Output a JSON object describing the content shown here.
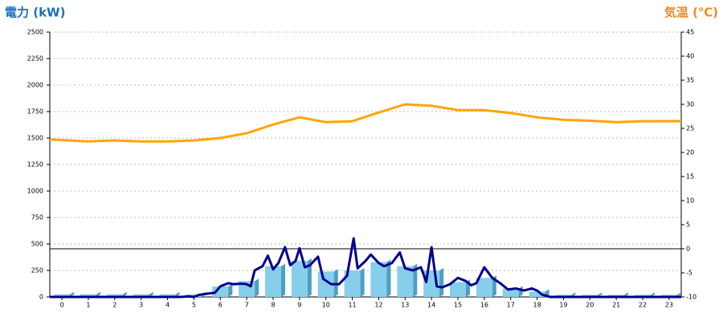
{
  "chart_data": {
    "type": "combo",
    "y_title": "電力 (kW)",
    "y2_title": "気温 (℃)",
    "xlim": [
      -0.46,
      23.46
    ],
    "xticks": [
      0,
      1,
      2,
      3,
      4,
      5,
      6,
      7,
      8,
      9,
      10,
      11,
      12,
      13,
      14,
      15,
      16,
      17,
      18,
      19,
      20,
      21,
      22,
      23
    ],
    "ylim": [
      0,
      2500
    ],
    "yticks": [
      0,
      250,
      500,
      750,
      1000,
      1250,
      1500,
      1750,
      2000,
      2250,
      2500
    ],
    "y2lim": [
      -10,
      45
    ],
    "y2ticks": [
      -10,
      -5,
      0,
      5,
      10,
      15,
      20,
      25,
      30,
      35,
      40,
      45
    ],
    "grid": true,
    "y2_reference": 0,
    "series": [
      {
        "type": "bar",
        "color": "#87ceeb",
        "side_color": "#4a9fc4",
        "x": [
          0,
          1,
          2,
          3,
          4,
          5,
          6,
          7,
          8,
          9,
          10,
          11,
          12,
          13,
          14,
          15,
          16,
          17,
          18,
          19,
          20,
          21,
          22,
          23
        ],
        "values": [
          25,
          25,
          25,
          25,
          25,
          25,
          100,
          150,
          290,
          340,
          240,
          250,
          330,
          290,
          250,
          140,
          180,
          80,
          50,
          20,
          20,
          20,
          20,
          20
        ]
      },
      {
        "type": "line",
        "color": "#00008b",
        "width": 3,
        "x": [
          -0.46,
          4.5,
          4.8,
          5.0,
          5.2,
          5.5,
          5.8,
          6.0,
          6.3,
          6.5,
          6.8,
          7.0,
          7.15,
          7.3,
          7.6,
          7.8,
          8.0,
          8.2,
          8.45,
          8.65,
          8.85,
          9.0,
          9.2,
          9.4,
          9.7,
          9.9,
          10.2,
          10.5,
          10.8,
          11.05,
          11.2,
          11.5,
          11.7,
          12.0,
          12.2,
          12.5,
          12.8,
          13.0,
          13.3,
          13.6,
          13.8,
          14.0,
          14.2,
          14.4,
          14.7,
          15.0,
          15.3,
          15.5,
          15.7,
          16.0,
          16.3,
          16.6,
          16.9,
          17.2,
          17.5,
          17.8,
          18.0,
          18.2,
          18.5,
          23.46
        ],
        "values": [
          0,
          0,
          5,
          0,
          20,
          30,
          40,
          100,
          130,
          120,
          125,
          120,
          100,
          250,
          290,
          390,
          260,
          320,
          470,
          300,
          340,
          460,
          280,
          300,
          380,
          170,
          120,
          120,
          200,
          553,
          270,
          340,
          400,
          320,
          290,
          320,
          420,
          270,
          250,
          280,
          140,
          470,
          100,
          90,
          120,
          180,
          150,
          110,
          130,
          280,
          180,
          130,
          70,
          80,
          60,
          80,
          60,
          20,
          0,
          0
        ]
      },
      {
        "type": "line",
        "axis": "y2",
        "color": "#ffa500",
        "width": 3,
        "x": [
          -0.46,
          1,
          2,
          3,
          4,
          5,
          6,
          7,
          8,
          9,
          10,
          11,
          12,
          13,
          14,
          15,
          16,
          17,
          18,
          19,
          20,
          21,
          22,
          23.46
        ],
        "values": [
          22.7,
          22.3,
          22.5,
          22.3,
          22.3,
          22.5,
          23,
          24,
          25.8,
          27.3,
          26.3,
          26.5,
          28.3,
          30,
          29.7,
          28.8,
          28.8,
          28.2,
          27.3,
          26.8,
          26.6,
          26.3,
          26.5,
          26.5
        ]
      }
    ]
  }
}
